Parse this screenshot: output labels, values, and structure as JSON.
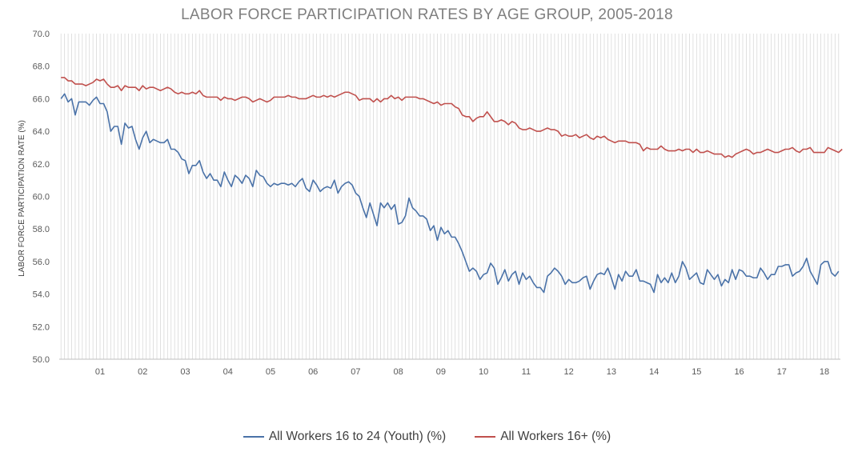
{
  "chart_data": {
    "type": "line",
    "title": "LABOR FORCE PARTICIPATION RATES BY AGE GROUP, 2005-2018",
    "ylabel": "LABOR FORCE PARTICIPATION RATE (%)",
    "xlabel": "",
    "ylim": [
      50,
      70
    ],
    "yticks": [
      "50.0",
      "52.0",
      "54.0",
      "56.0",
      "58.0",
      "60.0",
      "62.0",
      "64.0",
      "66.0",
      "68.0",
      "70.0"
    ],
    "xtick_labels": [
      "01",
      "02",
      "03",
      "04",
      "05",
      "06",
      "07",
      "08",
      "09",
      "10",
      "11",
      "12",
      "13",
      "14",
      "15",
      "16",
      "17",
      "18"
    ],
    "grid": "vertical lines at every month",
    "legend_position": "bottom",
    "series": [
      {
        "name": "All Workers 16 to 24 (Youth) (%)",
        "color": "#4a72a8",
        "values": [
          66.0,
          66.3,
          65.8,
          66.0,
          65.0,
          65.8,
          65.8,
          65.8,
          65.6,
          65.9,
          66.1,
          65.7,
          65.7,
          65.2,
          64.0,
          64.3,
          64.3,
          63.2,
          64.5,
          64.2,
          64.3,
          63.5,
          62.9,
          63.6,
          64.0,
          63.3,
          63.5,
          63.4,
          63.3,
          63.3,
          63.5,
          62.9,
          62.9,
          62.7,
          62.3,
          62.2,
          61.4,
          61.9,
          61.9,
          62.2,
          61.5,
          61.1,
          61.4,
          61.0,
          61.0,
          60.6,
          61.5,
          61.0,
          60.6,
          61.3,
          61.1,
          60.8,
          61.3,
          61.1,
          60.6,
          61.6,
          61.3,
          61.2,
          60.8,
          60.6,
          60.8,
          60.7,
          60.8,
          60.8,
          60.7,
          60.8,
          60.6,
          60.9,
          61.1,
          60.5,
          60.3,
          61.0,
          60.7,
          60.3,
          60.5,
          60.6,
          60.5,
          61.0,
          60.2,
          60.6,
          60.8,
          60.9,
          60.7,
          60.2,
          60.0,
          59.3,
          58.7,
          59.6,
          58.9,
          58.2,
          59.6,
          59.3,
          59.6,
          59.2,
          59.5,
          58.3,
          58.4,
          58.8,
          59.9,
          59.3,
          59.1,
          58.8,
          58.8,
          58.6,
          57.9,
          58.2,
          57.3,
          58.1,
          57.7,
          57.9,
          57.5,
          57.5,
          57.1,
          56.6,
          56.0,
          55.4,
          55.6,
          55.4,
          54.9,
          55.2,
          55.3,
          55.9,
          55.6,
          54.6,
          55.0,
          55.5,
          54.8,
          55.2,
          55.4,
          54.6,
          55.3,
          54.9,
          55.1,
          54.7,
          54.4,
          54.4,
          54.1,
          55.1,
          55.3,
          55.6,
          55.4,
          55.1,
          54.6,
          54.9,
          54.7,
          54.7,
          54.8,
          55.0,
          55.1,
          54.3,
          54.8,
          55.2,
          55.3,
          55.2,
          55.6,
          55.0,
          54.3,
          55.2,
          54.8,
          55.4,
          55.1,
          55.1,
          55.5,
          54.8,
          54.8,
          54.7,
          54.6,
          54.1,
          55.2,
          54.7,
          55.0,
          54.7,
          55.3,
          54.7,
          55.1,
          56.0,
          55.6,
          54.9,
          55.1,
          55.3,
          54.7,
          54.6,
          55.5,
          55.2,
          54.9,
          55.2,
          54.5,
          54.9,
          54.7,
          55.5,
          54.9,
          55.5,
          55.4,
          55.1,
          55.1,
          55.0,
          55.0,
          55.6,
          55.3,
          54.9,
          55.2,
          55.2,
          55.7,
          55.7,
          55.8,
          55.8,
          55.1,
          55.3,
          55.4,
          55.7,
          56.2,
          55.4,
          55.0,
          54.6,
          55.8,
          56.0,
          56.0,
          55.3,
          55.1,
          55.4
        ]
      },
      {
        "name": "All Workers 16+ (%)",
        "color": "#c0504d",
        "values": [
          67.3,
          67.3,
          67.1,
          67.1,
          66.9,
          66.9,
          66.9,
          66.8,
          66.9,
          67.0,
          67.2,
          67.1,
          67.2,
          66.9,
          66.7,
          66.7,
          66.8,
          66.5,
          66.8,
          66.7,
          66.7,
          66.7,
          66.5,
          66.8,
          66.6,
          66.7,
          66.7,
          66.6,
          66.5,
          66.6,
          66.7,
          66.6,
          66.4,
          66.3,
          66.4,
          66.3,
          66.3,
          66.4,
          66.3,
          66.5,
          66.2,
          66.1,
          66.1,
          66.1,
          66.1,
          65.9,
          66.1,
          66.0,
          66.0,
          65.9,
          66.0,
          66.1,
          66.1,
          66.0,
          65.8,
          65.9,
          66.0,
          65.9,
          65.8,
          65.9,
          66.1,
          66.1,
          66.1,
          66.1,
          66.2,
          66.1,
          66.1,
          66.0,
          66.0,
          66.0,
          66.1,
          66.2,
          66.1,
          66.1,
          66.2,
          66.1,
          66.2,
          66.1,
          66.2,
          66.3,
          66.4,
          66.4,
          66.3,
          66.2,
          65.9,
          66.0,
          66.0,
          66.0,
          65.8,
          66.0,
          65.8,
          66.0,
          66.0,
          66.2,
          66.0,
          66.1,
          65.9,
          66.1,
          66.1,
          66.1,
          66.1,
          66.0,
          66.0,
          65.9,
          65.8,
          65.7,
          65.8,
          65.6,
          65.7,
          65.7,
          65.7,
          65.5,
          65.4,
          65.0,
          64.9,
          64.9,
          64.6,
          64.8,
          64.9,
          64.9,
          65.2,
          64.9,
          64.6,
          64.6,
          64.7,
          64.6,
          64.4,
          64.6,
          64.5,
          64.2,
          64.1,
          64.1,
          64.2,
          64.1,
          64.0,
          64.0,
          64.1,
          64.2,
          64.1,
          64.1,
          64.0,
          63.7,
          63.8,
          63.7,
          63.7,
          63.8,
          63.6,
          63.7,
          63.8,
          63.6,
          63.5,
          63.7,
          63.6,
          63.7,
          63.5,
          63.4,
          63.3,
          63.4,
          63.4,
          63.4,
          63.3,
          63.3,
          63.3,
          63.2,
          62.8,
          63.0,
          62.9,
          62.9,
          62.9,
          63.1,
          62.9,
          62.8,
          62.8,
          62.8,
          62.9,
          62.8,
          62.9,
          62.9,
          62.7,
          62.9,
          62.7,
          62.7,
          62.8,
          62.7,
          62.6,
          62.6,
          62.6,
          62.4,
          62.5,
          62.4,
          62.6,
          62.7,
          62.8,
          62.9,
          62.8,
          62.6,
          62.7,
          62.7,
          62.8,
          62.9,
          62.8,
          62.7,
          62.7,
          62.8,
          62.9,
          62.9,
          63.0,
          62.8,
          62.7,
          62.9,
          62.9,
          63.0,
          62.7,
          62.7,
          62.7,
          62.7,
          63.0,
          62.9,
          62.8,
          62.7,
          62.9
        ]
      }
    ]
  }
}
